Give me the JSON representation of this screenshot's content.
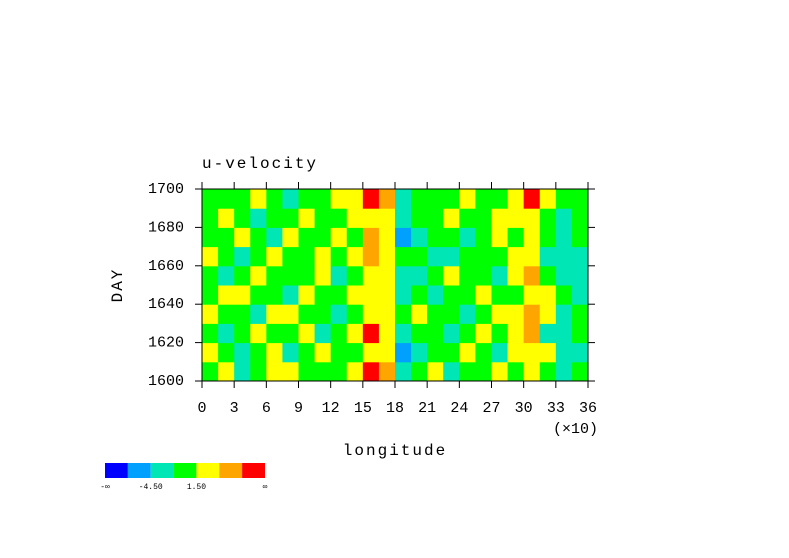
{
  "chart_data": {
    "type": "heatmap",
    "title": "u-velocity",
    "x_label": "longitude",
    "x_multiplier_label": "(×10)",
    "y_label": "DAY",
    "xlim": [
      0,
      36
    ],
    "xticks": [
      0,
      3,
      6,
      9,
      12,
      15,
      18,
      21,
      24,
      27,
      30,
      33,
      36
    ],
    "ylim": [
      1600,
      1700
    ],
    "yticks": [
      1600,
      1620,
      1640,
      1660,
      1680,
      1700
    ],
    "x": [
      0.75,
      2.25,
      3.75,
      5.25,
      6.75,
      8.25,
      9.75,
      11.25,
      12.75,
      14.25,
      15.75,
      17.25,
      18.75,
      20.25,
      21.75,
      23.25,
      24.75,
      26.25,
      27.75,
      29.25,
      30.75,
      32.25,
      33.75,
      35.25
    ],
    "y": [
      1605,
      1615,
      1625,
      1635,
      1645,
      1655,
      1665,
      1675,
      1685,
      1695
    ],
    "values": [
      [
        1,
        2,
        -2,
        0,
        2,
        3,
        -1,
        0,
        1,
        2,
        8,
        6,
        -3,
        0,
        2,
        -2,
        0,
        1,
        2,
        -1,
        3,
        0,
        -2,
        -1
      ],
      [
        2,
        0,
        -3,
        1,
        2,
        -2,
        0,
        2,
        0,
        1,
        3,
        4,
        -5,
        -2,
        0,
        1,
        2,
        0,
        -2,
        3,
        4,
        2,
        -3,
        -2
      ],
      [
        0,
        -2,
        1,
        2,
        -1,
        0,
        3,
        -2,
        0,
        2,
        8,
        3,
        -2,
        0,
        1,
        -3,
        0,
        2,
        1,
        2,
        5,
        -2,
        -4,
        -1
      ],
      [
        2,
        1,
        0,
        -2,
        3,
        2,
        0,
        1,
        -2,
        0,
        4,
        2,
        -1,
        2,
        0,
        1,
        -2,
        0,
        2,
        3,
        6,
        3,
        -2,
        0
      ],
      [
        -1,
        2,
        3,
        0,
        1,
        -2,
        2,
        0,
        1,
        2,
        2,
        4,
        -3,
        0,
        -2,
        0,
        1,
        2,
        0,
        1,
        4,
        2,
        0,
        -2
      ],
      [
        0,
        -2,
        0,
        2,
        -1,
        0,
        1,
        2,
        -2,
        1,
        3,
        2,
        -2,
        -3,
        0,
        2,
        -1,
        0,
        -2,
        2,
        5,
        0,
        -2,
        -3
      ],
      [
        2,
        0,
        -2,
        1,
        3,
        0,
        -1,
        2,
        0,
        3,
        5,
        2,
        -1,
        0,
        -2,
        -3,
        0,
        1,
        -1,
        2,
        3,
        -2,
        -3,
        -2
      ],
      [
        1,
        -1,
        2,
        0,
        -2,
        2,
        0,
        -1,
        2,
        0,
        5,
        3,
        -5,
        -2,
        0,
        1,
        -2,
        0,
        2,
        1,
        4,
        0,
        -2,
        -1
      ],
      [
        0,
        2,
        1,
        -2,
        0,
        1,
        2,
        0,
        -1,
        2,
        3,
        2,
        -2,
        0,
        1,
        2,
        0,
        1,
        2,
        3,
        3,
        1,
        -2,
        0
      ],
      [
        1,
        0,
        -1,
        2,
        0,
        -2,
        1,
        0,
        2,
        3,
        8,
        5,
        -3,
        0,
        1,
        0,
        2,
        -1,
        0,
        2,
        8,
        3,
        -1,
        0
      ]
    ],
    "levels": [
      -7.5,
      -4.5,
      -1.5,
      1.5,
      4.5,
      7.5
    ],
    "colors": [
      "#0000ff",
      "#00a0ff",
      "#00e6b4",
      "#00ff00",
      "#ffff00",
      "#ffa500",
      "#ff0000"
    ],
    "colorbar_low_label": "-∞",
    "colorbar_high_label": "∞",
    "colorbar_labels": [
      {
        "value": -4.5,
        "label": "-4.50"
      },
      {
        "value": 1.5,
        "label": "1.50"
      }
    ]
  }
}
